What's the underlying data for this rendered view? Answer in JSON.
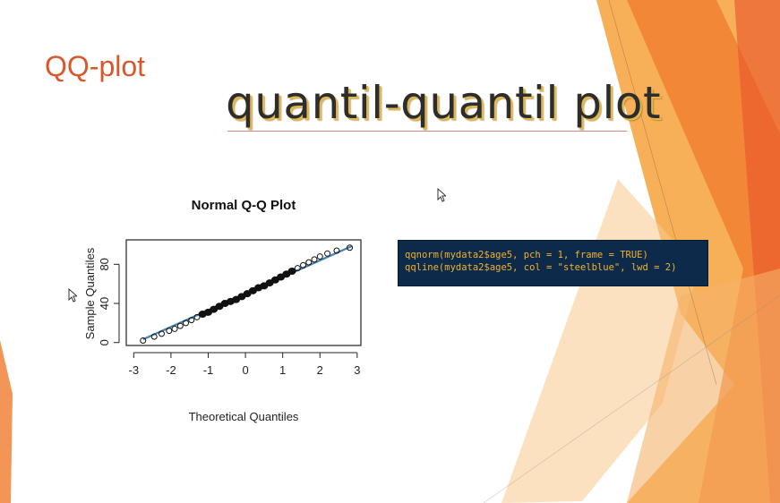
{
  "slide": {
    "label": "QQ-plot",
    "title": "quantil-quantil plot"
  },
  "code": {
    "lines": [
      "qqnorm(mydata2$age5, pch = 1, frame = TRUE)",
      "qqline(mydata2$age5, col = \"steelblue\", lwd = 2)"
    ]
  },
  "colors": {
    "accent_orange": "#d9582b",
    "code_bg": "#0d2a4a",
    "code_text": "#f0b233",
    "line": "#4682b4"
  },
  "chart_data": {
    "type": "scatter",
    "title": "Normal Q-Q Plot",
    "xlabel": "Theoretical Quantiles",
    "ylabel": "Sample Quantiles",
    "xlim": [
      -3,
      3
    ],
    "ylim": [
      0,
      100
    ],
    "xticks": [
      "-3",
      "-2",
      "-1",
      "0",
      "1",
      "2",
      "3"
    ],
    "yticks": [
      "0",
      "40",
      "80"
    ],
    "points": [
      [
        -2.75,
        2
      ],
      [
        -2.45,
        6
      ],
      [
        -2.25,
        9
      ],
      [
        -2.05,
        12
      ],
      [
        -1.9,
        14
      ],
      [
        -1.75,
        17
      ],
      [
        -1.6,
        20
      ],
      [
        -1.45,
        23
      ],
      [
        -1.3,
        26
      ],
      [
        -1.15,
        29
      ],
      [
        -1.0,
        31
      ],
      [
        -0.85,
        34
      ],
      [
        -0.7,
        37
      ],
      [
        -0.55,
        40
      ],
      [
        -0.4,
        42
      ],
      [
        -0.25,
        44
      ],
      [
        -0.1,
        47
      ],
      [
        0.05,
        50
      ],
      [
        0.2,
        53
      ],
      [
        0.35,
        56
      ],
      [
        0.5,
        58
      ],
      [
        0.65,
        61
      ],
      [
        0.8,
        64
      ],
      [
        0.95,
        67
      ],
      [
        1.1,
        70
      ],
      [
        1.25,
        73
      ],
      [
        1.4,
        76
      ],
      [
        1.55,
        79
      ],
      [
        1.7,
        82
      ],
      [
        1.85,
        85
      ],
      [
        2.0,
        88
      ],
      [
        2.2,
        91
      ],
      [
        2.45,
        94
      ],
      [
        2.8,
        97
      ]
    ],
    "qqline": {
      "intercept": 50,
      "slope": 17
    },
    "grid": false,
    "frame": true
  }
}
